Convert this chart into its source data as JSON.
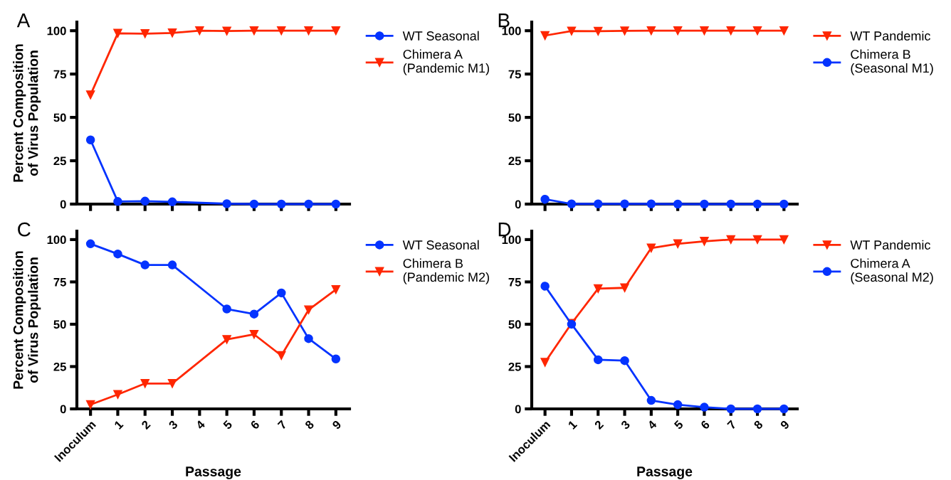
{
  "chart_data": [
    {
      "type": "line",
      "title": "A",
      "ylabel": "Percent Composition\nof Virus Population",
      "categories": [
        null,
        null,
        null,
        null,
        null,
        null,
        null,
        null,
        null,
        null
      ],
      "ylim": [
        0,
        105
      ],
      "yticks": [
        0,
        25,
        50,
        75,
        100
      ],
      "tick_labels": "y",
      "legend": "right",
      "series": [
        {
          "name": "WT Seasonal",
          "color": "#0433ff",
          "marker": "circle",
          "values": [
            37,
            1.5,
            1.7,
            1.3,
            null,
            0.2,
            0,
            0,
            0,
            0
          ]
        },
        {
          "name": "Chimera A\n(Pandemic M1)",
          "color": "#ff2600",
          "marker": "triangle",
          "values": [
            63,
            98.5,
            98.3,
            98.7,
            100,
            99.8,
            100,
            100,
            100,
            100
          ]
        }
      ]
    },
    {
      "type": "line",
      "title": "B",
      "categories": [
        null,
        null,
        null,
        null,
        null,
        null,
        null,
        null,
        null,
        null
      ],
      "ylim": [
        0,
        105
      ],
      "yticks": [
        0,
        25,
        50,
        75,
        100
      ],
      "tick_labels": "y",
      "legend": "right",
      "series": [
        {
          "name": "WT Pandemic",
          "color": "#ff2600",
          "marker": "triangle",
          "values": [
            97.2,
            99.8,
            99.7,
            99.9,
            100,
            100,
            100,
            100,
            100,
            100
          ]
        },
        {
          "name": "Chimera B\n(Seasonal M1)",
          "color": "#0433ff",
          "marker": "circle",
          "values": [
            2.8,
            0.1,
            0.1,
            0.1,
            0.1,
            0,
            0,
            0,
            0,
            0
          ]
        }
      ]
    },
    {
      "type": "line",
      "title": "C",
      "xlabel": "Passage",
      "ylabel": "Percent Composition\nof Virus Population",
      "categories": [
        "Inoculum",
        "1",
        "2",
        "3",
        "4",
        "5",
        "6",
        "7",
        "8",
        "9"
      ],
      "ylim": [
        0,
        105
      ],
      "yticks": [
        0,
        25,
        50,
        75,
        100
      ],
      "legend": "right",
      "series": [
        {
          "name": "WT Seasonal",
          "color": "#0433ff",
          "marker": "circle",
          "values": [
            97.5,
            91.5,
            85,
            85,
            null,
            59,
            56,
            68.5,
            41.5,
            29.5
          ]
        },
        {
          "name": "Chimera B\n(Pandemic M2)",
          "color": "#ff2600",
          "marker": "triangle",
          "values": [
            2.5,
            8.5,
            15,
            15,
            null,
            41,
            44,
            31.5,
            58.5,
            70.5
          ]
        }
      ]
    },
    {
      "type": "line",
      "title": "D",
      "xlabel": "Passage",
      "categories": [
        "Inoculum",
        "1",
        "2",
        "3",
        "4",
        "5",
        "6",
        "7",
        "8",
        "9"
      ],
      "ylim": [
        0,
        105
      ],
      "yticks": [
        0,
        25,
        50,
        75,
        100
      ],
      "legend": "right",
      "series": [
        {
          "name": "WT Pandemic",
          "color": "#ff2600",
          "marker": "triangle",
          "values": [
            27.5,
            50.5,
            71,
            71.5,
            95,
            97.5,
            99,
            100,
            100,
            100
          ]
        },
        {
          "name": "Chimera A\n(Seasonal M2)",
          "color": "#0433ff",
          "marker": "circle",
          "values": [
            72.5,
            50,
            29,
            28.5,
            5,
            2.5,
            1,
            0,
            0,
            0
          ]
        }
      ]
    }
  ]
}
